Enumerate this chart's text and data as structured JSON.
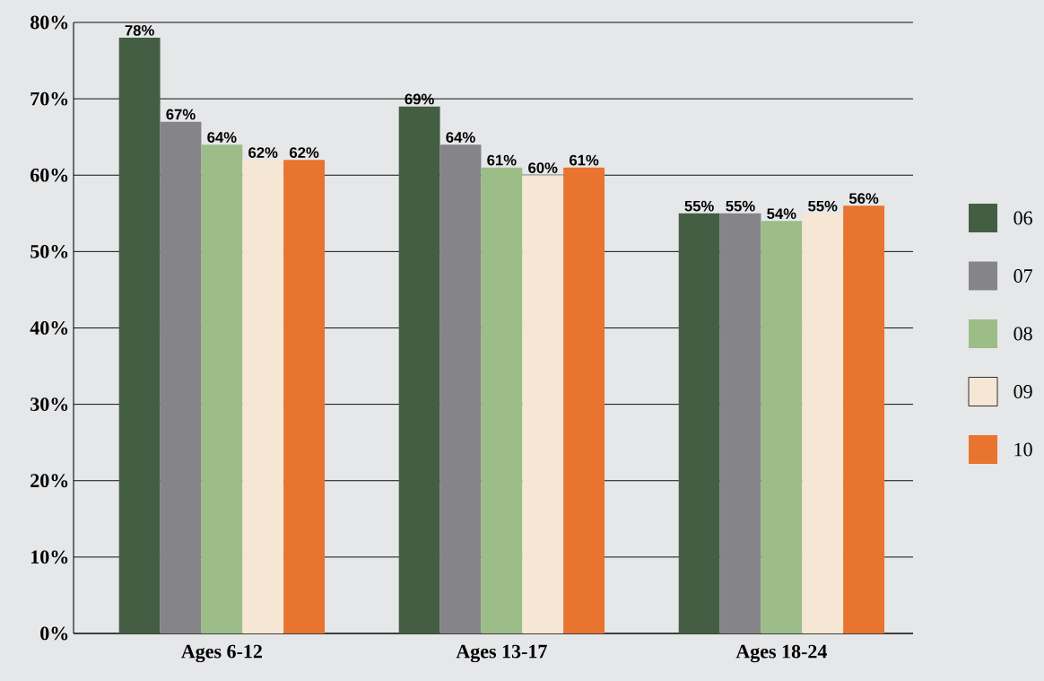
{
  "chart_data": {
    "type": "bar",
    "categories": [
      "Ages 6-12",
      "Ages 13-17",
      "Ages 18-24"
    ],
    "series": [
      {
        "name": "06",
        "color": "#445e44",
        "values": [
          78,
          69,
          55
        ],
        "value_labels": [
          "78%",
          "69%",
          "55%"
        ]
      },
      {
        "name": "07",
        "color": "#858589",
        "values": [
          67,
          64,
          55
        ],
        "value_labels": [
          "67%",
          "64%",
          "55%"
        ]
      },
      {
        "name": "08",
        "color": "#9dbd88",
        "values": [
          64,
          61,
          54
        ],
        "value_labels": [
          "64%",
          "61%",
          "54%"
        ]
      },
      {
        "name": "09",
        "color": "#f5e7d3",
        "values": [
          62,
          60,
          55
        ],
        "value_labels": [
          "62%",
          "60%",
          "55%"
        ]
      },
      {
        "name": "10",
        "color": "#e8742f",
        "values": [
          62,
          61,
          56
        ],
        "value_labels": [
          "62%",
          "61%",
          "56%"
        ]
      }
    ],
    "ylim": [
      0,
      80
    ],
    "yticks": [
      {
        "value": 0,
        "label": "0%"
      },
      {
        "value": 10,
        "label": "10%"
      },
      {
        "value": 20,
        "label": "20%"
      },
      {
        "value": 30,
        "label": "30%"
      },
      {
        "value": 40,
        "label": "40%"
      },
      {
        "value": 50,
        "label": "50%"
      },
      {
        "value": 60,
        "label": "60%"
      },
      {
        "value": 70,
        "label": "70%"
      },
      {
        "value": 80,
        "label": "80%"
      }
    ],
    "grid": "y",
    "legend": "right"
  }
}
